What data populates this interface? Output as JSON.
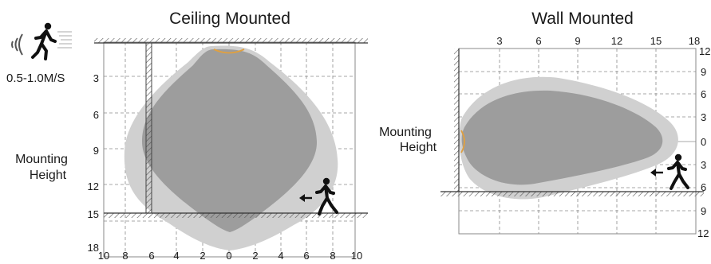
{
  "speed_label": "0.5-1.0M/S",
  "ceiling": {
    "title": "Ceiling Mounted",
    "side_label_line1": "Mounting",
    "side_label_line2": "Height",
    "y_ticks": [
      "3",
      "6",
      "9",
      "12",
      "15",
      "18"
    ],
    "x_ticks": [
      "10",
      "8",
      "6",
      "4",
      "2",
      "0",
      "2",
      "4",
      "6",
      "8",
      "10"
    ]
  },
  "wall": {
    "title": "Wall Mounted",
    "side_label_line1": "Mounting",
    "side_label_line2": "Height",
    "x_ticks": [
      "3",
      "6",
      "9",
      "12",
      "15",
      "18"
    ],
    "y_ticks": [
      "12",
      "9",
      "6",
      "3",
      "0",
      "3",
      "6",
      "9",
      "12"
    ]
  },
  "colors": {
    "outer_zone": "#d0d0d0",
    "inner_zone": "#9d9d9d",
    "sensor": "#e0a040",
    "grid": "#8a8a8a",
    "hatch": "#555555"
  },
  "icons": [
    "motion-sensor-icon",
    "walking-person-icon",
    "arrow-left-icon"
  ]
}
